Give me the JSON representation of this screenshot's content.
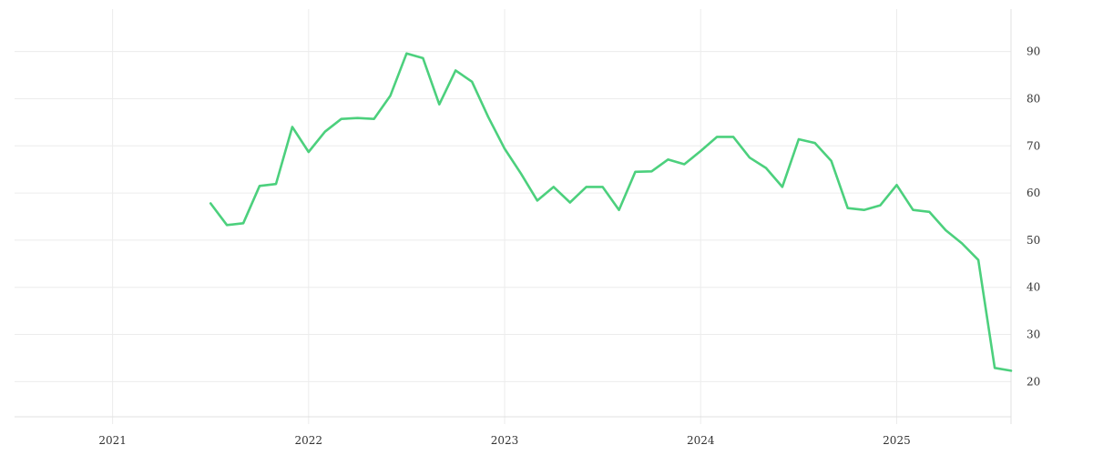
{
  "chart_data": {
    "type": "line",
    "x_ticks": [
      "2021",
      "2022",
      "2023",
      "2024",
      "2025"
    ],
    "y_ticks": [
      20,
      30,
      40,
      50,
      60,
      70,
      80,
      90
    ],
    "ylim": [
      11,
      99
    ],
    "xlim": [
      "2020-07-01",
      "2025-08-01"
    ],
    "grid": true,
    "y_axis_position": "right",
    "series_color": "#4cd07d",
    "series": [
      {
        "x": [
          "2021-07",
          "2021-08",
          "2021-09",
          "2021-10",
          "2021-11",
          "2021-12",
          "2022-01",
          "2022-02",
          "2022-03",
          "2022-04",
          "2022-05",
          "2022-06",
          "2022-07",
          "2022-08",
          "2022-09",
          "2022-10",
          "2022-11",
          "2022-12",
          "2023-01",
          "2023-02",
          "2023-03",
          "2023-04",
          "2023-05",
          "2023-06",
          "2023-07",
          "2023-08",
          "2023-09",
          "2023-10",
          "2023-11",
          "2023-12",
          "2024-01",
          "2024-02",
          "2024-03",
          "2024-04",
          "2024-05",
          "2024-06",
          "2024-07",
          "2024-08",
          "2024-09",
          "2024-10",
          "2024-11",
          "2024-12",
          "2025-01",
          "2025-02",
          "2025-03",
          "2025-04",
          "2025-05",
          "2025-06",
          "2025-07",
          "2025-08"
        ],
        "values": [
          57.8,
          53.2,
          53.6,
          61.5,
          61.9,
          74.0,
          68.7,
          73.0,
          75.7,
          75.9,
          75.7,
          80.6,
          89.6,
          88.6,
          78.8,
          86.0,
          83.6,
          76.1,
          69.4,
          64.1,
          58.4,
          61.3,
          58.0,
          61.3,
          61.3,
          56.4,
          64.5,
          64.6,
          67.1,
          66.1,
          68.9,
          71.9,
          71.9,
          67.5,
          65.3,
          61.3,
          71.4,
          70.6,
          66.8,
          56.8,
          56.4,
          57.4,
          61.7,
          56.4,
          56.0,
          52.1,
          49.3,
          45.8,
          22.9,
          22.3
        ]
      }
    ]
  }
}
